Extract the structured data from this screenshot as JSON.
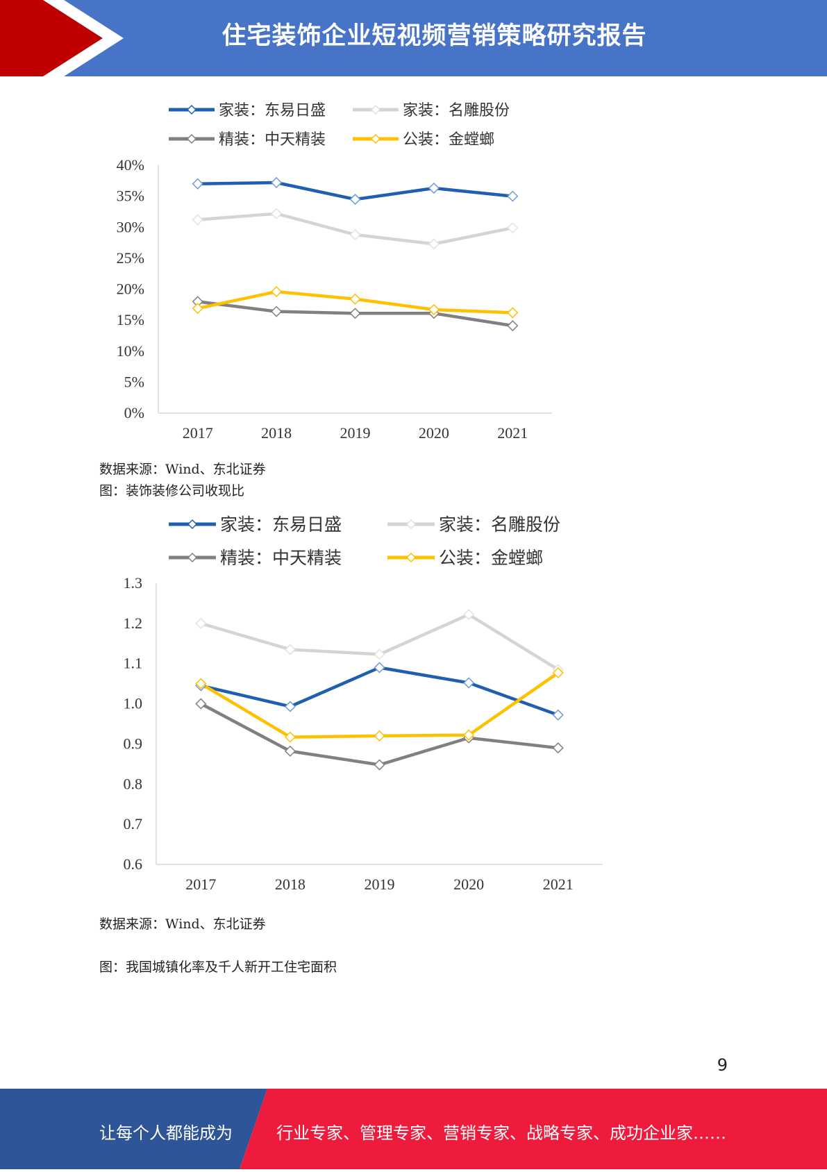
{
  "header": {
    "title": "住宅装饰企业短视频营销策略研究报告",
    "colors": {
      "bar": "#4774c6",
      "accent": "#c00000"
    }
  },
  "charts": [
    {
      "source": "数据来源：Wind、东北证券",
      "chart_data": {
        "type": "line",
        "categories": [
          "2017",
          "2018",
          "2019",
          "2020",
          "2021"
        ],
        "y_ticks": [
          "40%",
          "35%",
          "30%",
          "25%",
          "20%",
          "15%",
          "10%",
          "5%",
          "0%"
        ],
        "ylim": [
          0,
          40
        ],
        "grid": false,
        "legend": "top",
        "series": [
          {
            "name": "家装：东易日盛",
            "color": "#1f5fb0",
            "values": [
              37.0,
              37.2,
              34.5,
              36.3,
              35.0
            ]
          },
          {
            "name": "家装：名雕股份",
            "color": "#d4d4d4",
            "values": [
              31.2,
              32.2,
              28.8,
              27.3,
              29.9
            ]
          },
          {
            "name": "精装：中天精装",
            "color": "#808080",
            "values": [
              18.0,
              16.4,
              16.1,
              16.1,
              14.1
            ]
          },
          {
            "name": "公装：金螳螂",
            "color": "#ffc000",
            "values": [
              16.9,
              19.6,
              18.4,
              16.7,
              16.2
            ]
          }
        ]
      }
    },
    {
      "title": "图：装饰装修公司收现比",
      "source": "数据来源：Wind、东北证券",
      "chart_data": {
        "type": "line",
        "categories": [
          "2017",
          "2018",
          "2019",
          "2020",
          "2021"
        ],
        "y_ticks": [
          "1.3",
          "1.2",
          "1.1",
          "1.0",
          "0.9",
          "0.8",
          "0.7",
          "0.6"
        ],
        "ylim": [
          0.6,
          1.3
        ],
        "grid": false,
        "legend": "top",
        "series": [
          {
            "name": "家装：东易日盛",
            "color": "#1f5fb0",
            "values": [
              1.045,
              0.993,
              1.09,
              1.052,
              0.972
            ]
          },
          {
            "name": "家装：名雕股份",
            "color": "#d4d4d4",
            "values": [
              1.2,
              1.135,
              1.123,
              1.222,
              1.085
            ]
          },
          {
            "name": "精装：中天精装",
            "color": "#808080",
            "values": [
              1.0,
              0.882,
              0.848,
              0.915,
              0.89
            ]
          },
          {
            "name": "公装：金螳螂",
            "color": "#ffc000",
            "values": [
              1.05,
              0.917,
              0.92,
              0.922,
              1.077
            ]
          }
        ]
      }
    }
  ],
  "next_figure_title": "图：我国城镇化率及千人新开工住宅面积",
  "page_number": "9",
  "footer": {
    "left": "让每个人都能成为",
    "right": "行业专家、管理专家、营销专家、战略专家、成功企业家……",
    "colors": {
      "left": "#2e5597",
      "right": "#ef1b3c"
    }
  }
}
